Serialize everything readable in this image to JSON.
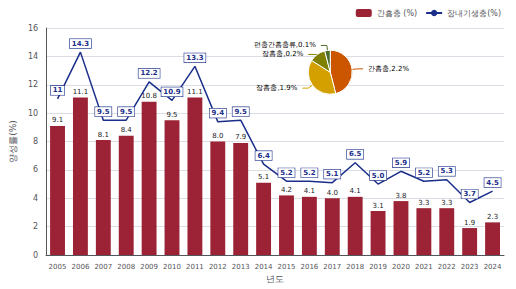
{
  "chart_data": [
    {
      "type": "bar",
      "xlabel": "년도",
      "ylabel": "양성률(%)",
      "categories": [
        "2005",
        "2006",
        "2007",
        "2008",
        "2009",
        "2010",
        "2011",
        "2012",
        "2013",
        "2014",
        "2015",
        "2016",
        "2017",
        "2018",
        "2019",
        "2020",
        "2021",
        "2022",
        "2023",
        "2024"
      ],
      "series": [
        {
          "name": "간흡충 (%)",
          "type": "bar",
          "color": "#9B2335",
          "values": [
            9.1,
            11.1,
            8.1,
            8.4,
            10.8,
            9.5,
            11.1,
            8.0,
            7.9,
            5.1,
            4.2,
            4.1,
            4.0,
            4.1,
            3.1,
            3.8,
            3.3,
            3.3,
            1.9,
            2.3
          ],
          "value_labels": [
            "9.1",
            "11.1",
            "8.1",
            "8.4",
            "10.8",
            "9.5",
            "11.1",
            "8.0",
            "7.9",
            "5.1",
            "4.2",
            "4.1",
            "4.0",
            "4.1",
            "3.1",
            "3.8",
            "3.3",
            "3.3",
            "1.9",
            "2.3"
          ]
        },
        {
          "name": "장내기생충(%)",
          "type": "line",
          "color": "#1A2E8A",
          "values": [
            11,
            14.3,
            9.5,
            9.5,
            12.2,
            10.9,
            13.3,
            9.4,
            9.5,
            6.4,
            5.2,
            5.2,
            5.1,
            6.5,
            5.0,
            5.9,
            5.2,
            5.3,
            3.7,
            4.5
          ],
          "value_labels": [
            "11",
            "14.3",
            "9.5",
            "9.5",
            "12.2",
            "10.9",
            "13.3",
            "9.4",
            "9.5",
            "6.4",
            "5.2",
            "5.2",
            "5.1",
            "6.5",
            "5.0",
            "5.9",
            "5.2",
            "5.3",
            "3.7",
            "4.5"
          ]
        }
      ],
      "ylim": [
        0,
        16
      ],
      "yticks": [
        0,
        2,
        4,
        6,
        8,
        10,
        12,
        14,
        16
      ],
      "grid": true,
      "legend": "upper right",
      "data_labels": true
    },
    {
      "type": "pie",
      "values": [
        46.0,
        38.0,
        12.0,
        4.0
      ],
      "value_labels": [
        "간흡충,2.2%",
        "장흡충,1.9%",
        "장흡충,0.2%",
        "편충간흡충류,0.1%"
      ],
      "colors": [
        "#CC5500",
        "#D4A000",
        "#808000",
        "#4B6B2A"
      ],
      "data_labels": true
    }
  ]
}
